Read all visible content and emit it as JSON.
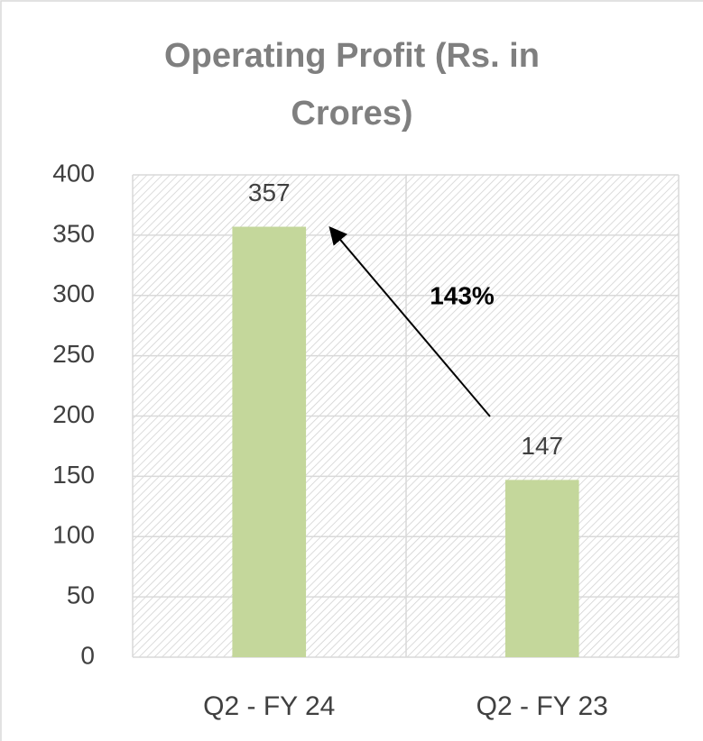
{
  "chart_data": {
    "type": "bar",
    "title": "Operating Profit (Rs. in Crores)",
    "categories": [
      "Q2 - FY 24",
      "Q2 - FY 23"
    ],
    "values": [
      357,
      147
    ],
    "color": "#c4d79b",
    "ylim": [
      0,
      400
    ],
    "yticks": [
      0,
      50,
      100,
      150,
      200,
      250,
      300,
      350,
      400
    ],
    "grid": true,
    "annotation": "143%"
  }
}
